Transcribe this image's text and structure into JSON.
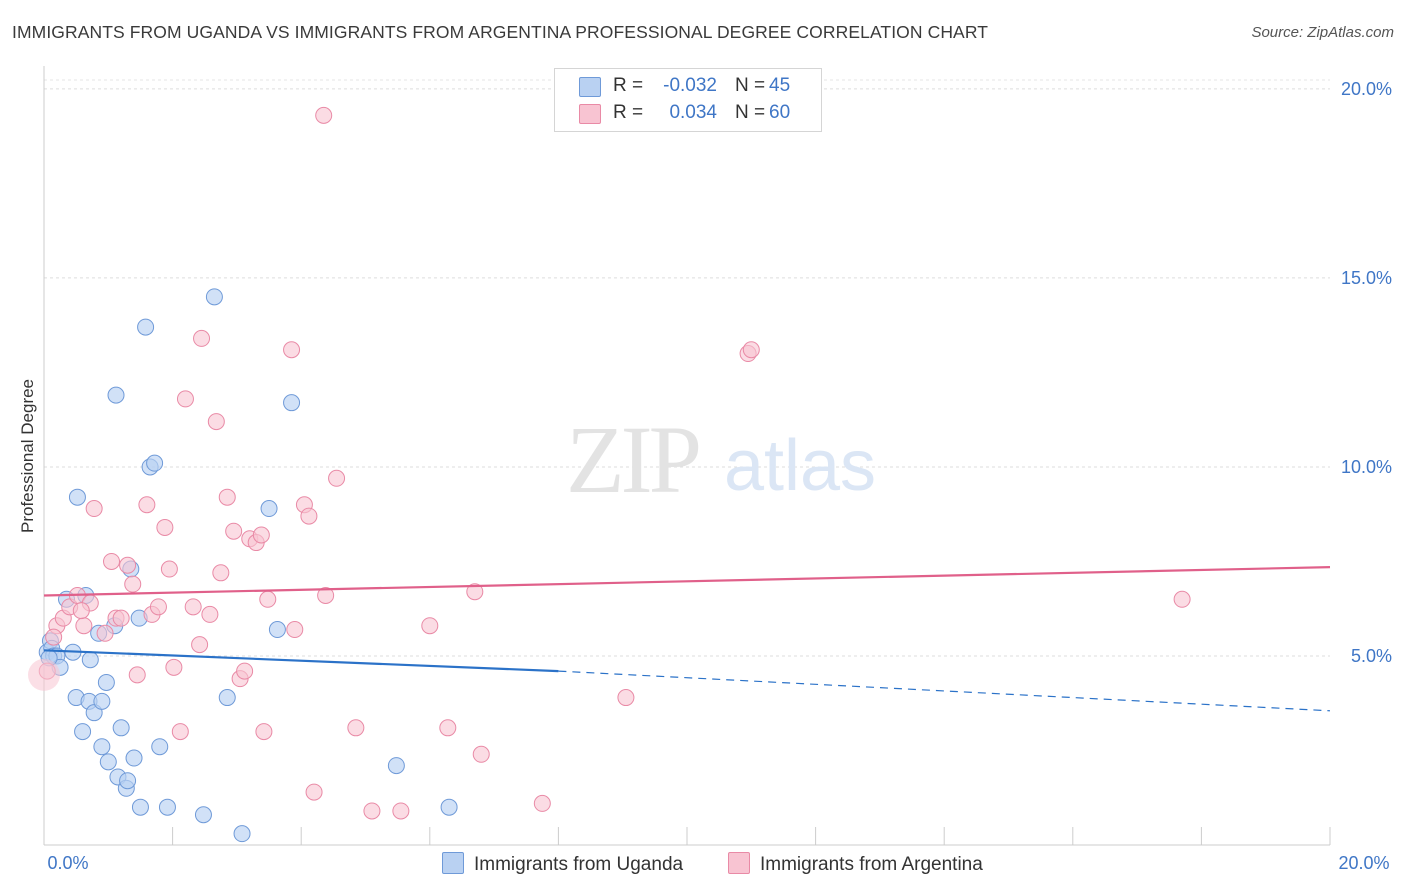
{
  "title": "IMMIGRANTS FROM UGANDA VS IMMIGRANTS FROM ARGENTINA PROFESSIONAL DEGREE CORRELATION CHART",
  "source": "Source: ZipAtlas.com",
  "watermark": {
    "zip": "ZIP",
    "atlas": "atlas"
  },
  "legend": {
    "uganda": {
      "r_label": "R =",
      "r_value": "-0.032",
      "n_label": "N =",
      "n_value": "45"
    },
    "argentina": {
      "r_label": "R =",
      "r_value": "0.034",
      "n_label": "N =",
      "n_value": "60"
    }
  },
  "bottom_legend": {
    "uganda": "Immigrants from Uganda",
    "argentina": "Immigrants from Argentina"
  },
  "colors": {
    "uganda_fill": "#b9d1f2",
    "uganda_stroke": "#6f9ad8",
    "uganda_line": "#2b72c8",
    "argentina_fill": "#f8c4d2",
    "argentina_stroke": "#e98aa6",
    "argentina_line": "#e0608a",
    "tick_label": "#3f76c6"
  },
  "chart_data": {
    "type": "scatter",
    "ylabel": "Professional Degree",
    "xlabel": "",
    "xlim": [
      0,
      20
    ],
    "ylim": [
      0,
      20.5
    ],
    "x_tick_labels": [
      "0.0%",
      "20.0%"
    ],
    "y_tick_labels": [
      "5.0%",
      "10.0%",
      "15.0%",
      "20.0%"
    ],
    "y_ticks": [
      5,
      10,
      15,
      20
    ],
    "grid": true,
    "series": [
      {
        "name": "Immigrants from Uganda",
        "trend": {
          "x": [
            0,
            8.0,
            20.0
          ],
          "y": [
            5.15,
            4.6,
            3.55
          ],
          "dashed_from": 8.0
        },
        "points": [
          [
            0.05,
            5.1
          ],
          [
            0.1,
            5.4
          ],
          [
            0.12,
            5.2
          ],
          [
            0.15,
            5.0
          ],
          [
            0.2,
            5.0
          ],
          [
            0.25,
            4.7
          ],
          [
            0.35,
            6.5
          ],
          [
            0.45,
            5.1
          ],
          [
            0.5,
            3.9
          ],
          [
            0.52,
            9.2
          ],
          [
            0.6,
            3.0
          ],
          [
            0.65,
            6.6
          ],
          [
            0.7,
            3.8
          ],
          [
            0.72,
            4.9
          ],
          [
            0.78,
            3.5
          ],
          [
            0.85,
            5.6
          ],
          [
            0.9,
            3.8
          ],
          [
            0.9,
            2.6
          ],
          [
            0.97,
            4.3
          ],
          [
            1.0,
            2.2
          ],
          [
            1.1,
            5.8
          ],
          [
            1.12,
            11.9
          ],
          [
            1.15,
            1.8
          ],
          [
            1.2,
            3.1
          ],
          [
            1.28,
            1.5
          ],
          [
            1.3,
            1.7
          ],
          [
            1.35,
            7.3
          ],
          [
            1.4,
            2.3
          ],
          [
            1.48,
            6.0
          ],
          [
            1.5,
            1.0
          ],
          [
            1.58,
            13.7
          ],
          [
            1.65,
            10.0
          ],
          [
            1.72,
            10.1
          ],
          [
            1.8,
            2.6
          ],
          [
            1.92,
            1.0
          ],
          [
            2.48,
            0.8
          ],
          [
            2.65,
            14.5
          ],
          [
            2.85,
            3.9
          ],
          [
            3.08,
            0.3
          ],
          [
            3.5,
            8.9
          ],
          [
            3.63,
            5.7
          ],
          [
            3.85,
            11.7
          ],
          [
            5.48,
            2.1
          ],
          [
            6.3,
            1.0
          ],
          [
            0.08,
            4.95
          ]
        ]
      },
      {
        "name": "Immigrants from Argentina",
        "trend": {
          "x": [
            0,
            20.0
          ],
          "y": [
            6.6,
            7.35
          ]
        },
        "points": [
          [
            0.05,
            4.6
          ],
          [
            0.2,
            5.8
          ],
          [
            0.3,
            6.0
          ],
          [
            0.4,
            6.3
          ],
          [
            0.52,
            6.6
          ],
          [
            0.62,
            5.8
          ],
          [
            0.72,
            6.4
          ],
          [
            0.78,
            8.9
          ],
          [
            0.95,
            5.6
          ],
          [
            1.05,
            7.5
          ],
          [
            1.12,
            6.0
          ],
          [
            1.2,
            6.0
          ],
          [
            1.3,
            7.4
          ],
          [
            1.38,
            6.9
          ],
          [
            1.45,
            4.5
          ],
          [
            1.6,
            9.0
          ],
          [
            1.68,
            6.1
          ],
          [
            1.78,
            6.3
          ],
          [
            1.88,
            8.4
          ],
          [
            1.95,
            7.3
          ],
          [
            2.02,
            4.7
          ],
          [
            2.12,
            3.0
          ],
          [
            2.2,
            11.8
          ],
          [
            2.32,
            6.3
          ],
          [
            2.42,
            5.3
          ],
          [
            2.45,
            13.4
          ],
          [
            2.58,
            6.1
          ],
          [
            2.68,
            11.2
          ],
          [
            2.75,
            7.2
          ],
          [
            2.85,
            9.2
          ],
          [
            2.95,
            8.3
          ],
          [
            3.05,
            4.4
          ],
          [
            3.12,
            4.6
          ],
          [
            3.2,
            8.1
          ],
          [
            3.3,
            8.0
          ],
          [
            3.38,
            8.2
          ],
          [
            3.42,
            3.0
          ],
          [
            3.48,
            6.5
          ],
          [
            3.85,
            13.1
          ],
          [
            3.9,
            5.7
          ],
          [
            4.05,
            9.0
          ],
          [
            4.12,
            8.7
          ],
          [
            4.2,
            1.4
          ],
          [
            4.38,
            6.6
          ],
          [
            4.55,
            9.7
          ],
          [
            4.35,
            19.3
          ],
          [
            4.85,
            3.1
          ],
          [
            5.1,
            0.9
          ],
          [
            5.55,
            0.9
          ],
          [
            6.0,
            5.8
          ],
          [
            6.28,
            3.1
          ],
          [
            6.7,
            6.7
          ],
          [
            6.8,
            2.4
          ],
          [
            7.75,
            1.1
          ],
          [
            9.05,
            3.9
          ],
          [
            10.95,
            13.0
          ],
          [
            11.0,
            13.1
          ],
          [
            17.7,
            6.5
          ],
          [
            0.15,
            5.5
          ],
          [
            0.58,
            6.2
          ]
        ]
      }
    ]
  }
}
